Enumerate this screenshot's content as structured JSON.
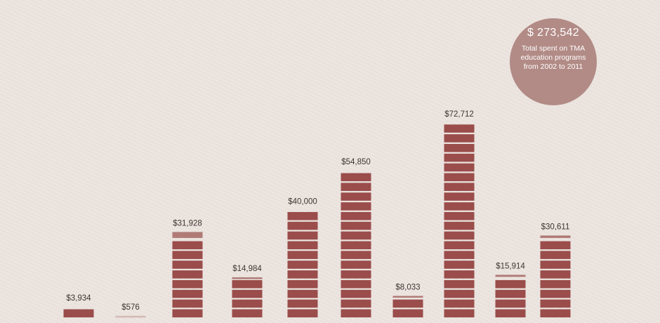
{
  "total": {
    "value": "$ 273,542",
    "caption": "Total spent on TMA education programs from 2002 to 2011"
  },
  "colors": {
    "bar": "#9a4d4b",
    "bar_top": "#b07b76",
    "bar_faint": "#d4b9b4",
    "label": "#3f3533",
    "circle": "#b28b86",
    "background": "#ebe3de"
  },
  "chart_data": {
    "type": "bar",
    "categories": [],
    "values": [
      3934,
      576,
      31928,
      14984,
      40000,
      54850,
      8033,
      72712,
      15914,
      30611
    ],
    "labels": [
      "$3,934",
      "$576",
      "$31,928",
      "$14,984",
      "$40,000",
      "$54,850",
      "$8,033",
      "$72,712",
      "$15,914",
      "$30,611"
    ],
    "ylim": [
      0,
      80000
    ],
    "grid": false,
    "legend": "none",
    "title": "",
    "xlabel": "",
    "ylabel": ""
  }
}
